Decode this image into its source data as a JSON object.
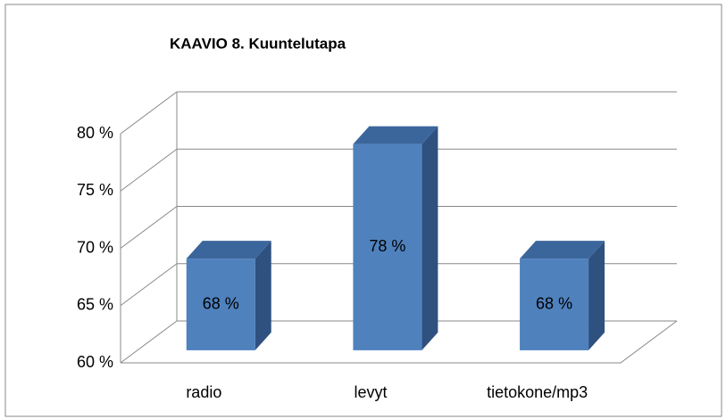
{
  "chart_data": {
    "type": "bar3d",
    "title": "KAAVIO 8. Kuuntelutapa",
    "categories": [
      "radio",
      "levyt",
      "tietokone/mp3"
    ],
    "values": [
      68,
      78,
      68
    ],
    "value_labels": [
      "68 %",
      "78 %",
      "68 %"
    ],
    "color": "#4f81bd",
    "ylim": [
      60,
      80
    ],
    "yticks": [
      {
        "value": 60,
        "label": "60 %"
      },
      {
        "value": 65,
        "label": "65 %"
      },
      {
        "value": 70,
        "label": "70 %"
      },
      {
        "value": 75,
        "label": "75 %"
      },
      {
        "value": 80,
        "label": "80 %"
      }
    ],
    "grid": true
  }
}
